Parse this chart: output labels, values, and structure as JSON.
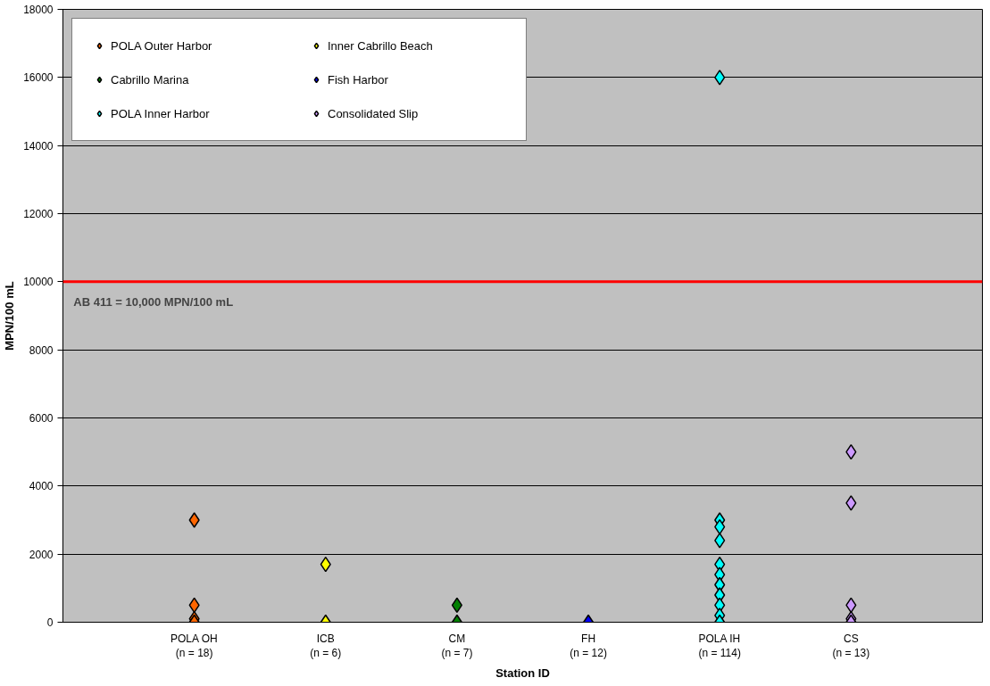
{
  "chart_data": {
    "type": "scatter",
    "xlabel": "Station ID",
    "ylabel": "MPN/100 mL",
    "categories": [
      "POLA OH\n(n = 18)",
      "ICB\n(n = 6)",
      "CM\n(n = 7)",
      "FH\n(n = 12)",
      "POLA IH\n(n = 114)",
      "CS\n(n = 13)"
    ],
    "series": [
      {
        "name": "POLA Outer Harbor",
        "color": "#ff6600",
        "x": [
          "POLA OH\n(n = 18)",
          "POLA OH\n(n = 18)",
          "POLA OH\n(n = 18)",
          "POLA OH\n(n = 18)"
        ],
        "values": [
          3000,
          500,
          100,
          0
        ]
      },
      {
        "name": "Inner Cabrillo Beach",
        "color": "#ffff00",
        "x": [
          "ICB\n(n = 6)",
          "ICB\n(n = 6)"
        ],
        "values": [
          1700,
          0
        ]
      },
      {
        "name": "Cabrillo Marina",
        "color": "#008000",
        "x": [
          "CM\n(n = 7)",
          "CM\n(n = 7)"
        ],
        "values": [
          500,
          0
        ]
      },
      {
        "name": "Fish Harbor",
        "color": "#0000ff",
        "x": [
          "FH\n(n = 12)"
        ],
        "values": [
          0
        ]
      },
      {
        "name": "POLA Inner Harbor",
        "color": "#00ffff",
        "x": [
          "POLA IH\n(n = 114)",
          "POLA IH\n(n = 114)",
          "POLA IH\n(n = 114)",
          "POLA IH\n(n = 114)",
          "POLA IH\n(n = 114)",
          "POLA IH\n(n = 114)",
          "POLA IH\n(n = 114)",
          "POLA IH\n(n = 114)",
          "POLA IH\n(n = 114)",
          "POLA IH\n(n = 114)",
          "POLA IH\n(n = 114)"
        ],
        "values": [
          16000,
          3000,
          2800,
          2400,
          1700,
          1400,
          1100,
          800,
          500,
          200,
          0
        ]
      },
      {
        "name": "Consolidated Slip",
        "color": "#cc99ff",
        "x": [
          "CS\n(n = 13)",
          "CS\n(n = 13)",
          "CS\n(n = 13)",
          "CS\n(n = 13)",
          "CS\n(n = 13)"
        ],
        "values": [
          5000,
          3500,
          500,
          100,
          0
        ]
      }
    ],
    "ylim": [
      0,
      18000
    ],
    "yticks": [
      0,
      2000,
      4000,
      6000,
      8000,
      10000,
      12000,
      14000,
      16000,
      18000
    ],
    "ref_lines": [
      {
        "axis": "y",
        "value": 10000,
        "label": "AB 411 = 10,000 MPN/100 mL",
        "color": "#ff0000"
      }
    ],
    "grid": "y",
    "legend": "top left",
    "marker": "diamond"
  }
}
